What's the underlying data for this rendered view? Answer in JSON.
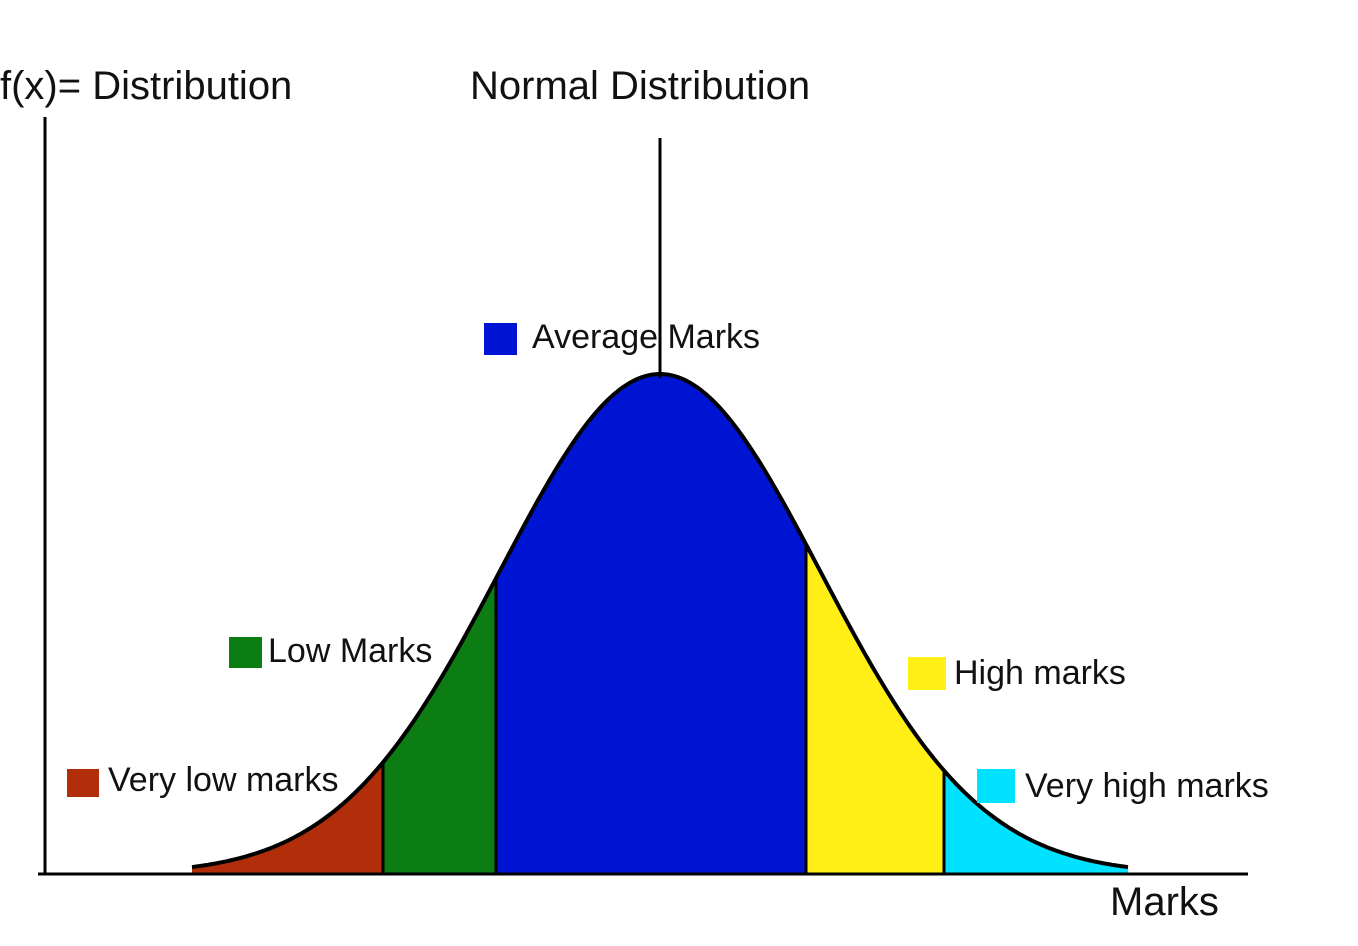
{
  "title": "Normal Distribution",
  "y_axis_label": "f(x)= Distribution",
  "x_axis_label": "Marks",
  "regions": [
    {
      "name": "Very low marks",
      "color": "#b22e0a"
    },
    {
      "name": "Low Marks",
      "color": "#0b7d12"
    },
    {
      "name": "Average Marks",
      "color": "#0014d4"
    },
    {
      "name": "High marks",
      "color": "#ffef16"
    },
    {
      "name": "Very high marks",
      "color": "#00e2ff"
    }
  ],
  "outline_color": "#000000",
  "axis_color": "#000000"
}
